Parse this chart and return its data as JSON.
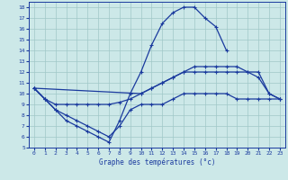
{
  "title": "Graphe des températures (°c)",
  "bg_color": "#cce8e8",
  "line_color": "#1a3a9e",
  "grid_color": "#a0c8c8",
  "xlim": [
    -0.5,
    23.5
  ],
  "ylim": [
    5,
    18.5
  ],
  "xticks": [
    0,
    1,
    2,
    3,
    4,
    5,
    6,
    7,
    8,
    9,
    10,
    11,
    12,
    13,
    14,
    15,
    16,
    17,
    18,
    19,
    20,
    21,
    22,
    23
  ],
  "yticks": [
    5,
    6,
    7,
    8,
    9,
    10,
    11,
    12,
    13,
    14,
    15,
    16,
    17,
    18
  ],
  "curve1_x": [
    0,
    1,
    2,
    3,
    4,
    5,
    6,
    7,
    8,
    9,
    10,
    11,
    12,
    13,
    14,
    15,
    16,
    17,
    18
  ],
  "curve1_y": [
    10.5,
    9.5,
    8.5,
    7.5,
    7.0,
    6.5,
    6.0,
    5.5,
    7.5,
    10.0,
    12.0,
    14.5,
    16.5,
    17.5,
    18.0,
    18.0,
    17.0,
    16.2,
    14.0
  ],
  "curve2_x": [
    0,
    10,
    11,
    12,
    13,
    14,
    15,
    16,
    17,
    18,
    19,
    20,
    21,
    22,
    23
  ],
  "curve2_y": [
    10.5,
    10.0,
    10.5,
    11.0,
    11.5,
    12.0,
    12.0,
    12.0,
    12.0,
    12.0,
    12.0,
    12.0,
    11.5,
    10.0,
    9.5
  ],
  "curve3_x": [
    0,
    1,
    2,
    3,
    4,
    5,
    6,
    7,
    8,
    9,
    10,
    11,
    12,
    13,
    14,
    15,
    16,
    17,
    18,
    19,
    20,
    21,
    22,
    23
  ],
  "curve3_y": [
    10.5,
    9.5,
    9.0,
    9.0,
    9.0,
    9.0,
    9.0,
    9.0,
    9.2,
    9.5,
    10.0,
    10.5,
    11.0,
    11.5,
    12.0,
    12.5,
    12.5,
    12.5,
    12.5,
    12.5,
    12.0,
    12.0,
    10.0,
    9.5
  ],
  "curve4_x": [
    0,
    1,
    2,
    3,
    4,
    5,
    6,
    7,
    8,
    9,
    10,
    11,
    12,
    13,
    14,
    15,
    16,
    17,
    18,
    19,
    20,
    21,
    22,
    23
  ],
  "curve4_y": [
    10.5,
    9.5,
    8.5,
    8.0,
    7.5,
    7.0,
    6.5,
    6.0,
    7.0,
    8.5,
    9.0,
    9.0,
    9.0,
    9.5,
    10.0,
    10.0,
    10.0,
    10.0,
    10.0,
    9.5,
    9.5,
    9.5,
    9.5,
    9.5
  ]
}
